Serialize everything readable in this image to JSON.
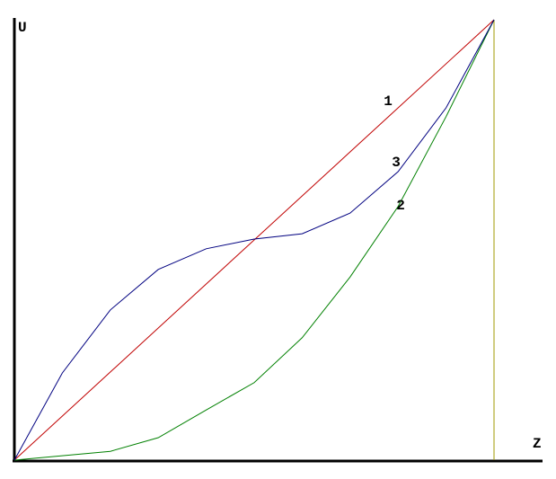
{
  "chart_data": {
    "type": "line",
    "xlabel": "Z",
    "ylabel": "U",
    "xlim": [
      0,
      1
    ],
    "ylim": [
      0,
      1
    ],
    "vline_x": 1,
    "vline_color": "#a09a00",
    "series": [
      {
        "name": "1",
        "color": "#c00000",
        "x": [
          0,
          1
        ],
        "values": [
          0,
          1
        ]
      },
      {
        "name": "2",
        "color": "#008000",
        "x": [
          0,
          0.2,
          0.3,
          0.4,
          0.5,
          0.6,
          0.7,
          0.8,
          0.9,
          1
        ],
        "values": [
          0,
          0.02,
          0.051,
          0.114,
          0.176,
          0.278,
          0.416,
          0.576,
          0.78,
          1
        ]
      },
      {
        "name": "3",
        "color": "#000080",
        "x": [
          0,
          0.1,
          0.2,
          0.3,
          0.4,
          0.5,
          0.6,
          0.7,
          0.8,
          0.9,
          1
        ],
        "values": [
          0,
          0.198,
          0.341,
          0.433,
          0.48,
          0.502,
          0.514,
          0.561,
          0.655,
          0.8,
          1
        ]
      }
    ]
  }
}
